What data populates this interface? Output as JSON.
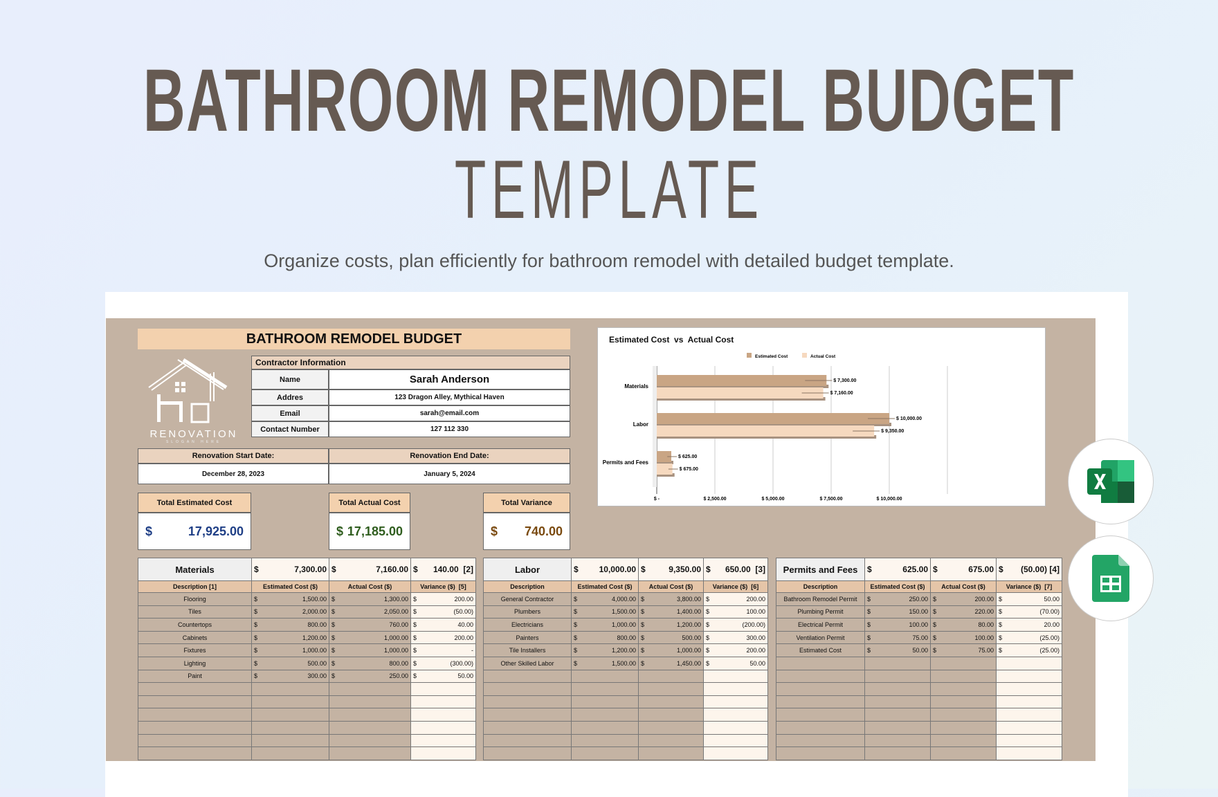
{
  "hero": {
    "title": "BATHROOM REMODEL BUDGET",
    "subtitle": "TEMPLATE",
    "description": "Organize costs, plan efficiently for bathroom remodel with detailed budget template."
  },
  "sheet": {
    "title": "BATHROOM REMODEL BUDGET",
    "logo": {
      "text": "RENOVATION",
      "slogan": "SLOGAN HERE"
    },
    "contractor": {
      "header": "Contractor Information",
      "rows": [
        {
          "label": "Name",
          "value": "Sarah Anderson"
        },
        {
          "label": "Addres",
          "value": "123 Dragon Alley, Mythical Haven"
        },
        {
          "label": "Email",
          "value": "sarah@email.com"
        },
        {
          "label": "Contact Number",
          "value": "127 112 330"
        }
      ]
    },
    "dates": {
      "start_label": "Renovation Start Date:",
      "start": "December 28, 2023",
      "end_label": "Renovation End Date:",
      "end": "January 5, 2024"
    },
    "totals": [
      {
        "label": "Total Estimated Cost",
        "currency": "$",
        "value": "17,925.00",
        "color": "#1f3f86"
      },
      {
        "label": "Total Actual Cost",
        "currency": "$",
        "value": "17,185.00",
        "color": "#2f5d1e"
      },
      {
        "label": "Total Variance",
        "currency": "$",
        "value": "740.00",
        "color": "#7a4a10"
      }
    ],
    "tables": [
      {
        "name": "Materials",
        "est_total": "7,300.00",
        "act_total": "7,160.00",
        "var_total": "140.00  [2]",
        "headers": [
          "Description [1]",
          "Estimated Cost ($)",
          "Actual Cost ($)",
          "Variance ($)  [5]"
        ],
        "rows": [
          [
            "Flooring",
            "1,500.00",
            "1,300.00",
            "200.00"
          ],
          [
            "Tiles",
            "2,000.00",
            "2,050.00",
            "(50.00)"
          ],
          [
            "Countertops",
            "800.00",
            "760.00",
            "40.00"
          ],
          [
            "Cabinets",
            "1,200.00",
            "1,000.00",
            "200.00"
          ],
          [
            "Fixtures",
            "1,000.00",
            "1,000.00",
            "-"
          ],
          [
            "Lighting",
            "500.00",
            "800.00",
            "(300.00)"
          ],
          [
            "Paint",
            "300.00",
            "250.00",
            "50.00"
          ]
        ]
      },
      {
        "name": "Labor",
        "est_total": "10,000.00",
        "act_total": "9,350.00",
        "var_total": "650.00  [3]",
        "headers": [
          "Description",
          "Estimated Cost ($)",
          "Actual Cost ($)",
          "Variance ($)  [6]"
        ],
        "rows": [
          [
            "General Contractor",
            "4,000.00",
            "3,800.00",
            "200.00"
          ],
          [
            "Plumbers",
            "1,500.00",
            "1,400.00",
            "100.00"
          ],
          [
            "Electricians",
            "1,000.00",
            "1,200.00",
            "(200.00)"
          ],
          [
            "Painters",
            "800.00",
            "500.00",
            "300.00"
          ],
          [
            "Tile Installers",
            "1,200.00",
            "1,000.00",
            "200.00"
          ],
          [
            "Other Skilled Labor",
            "1,500.00",
            "1,450.00",
            "50.00"
          ]
        ]
      },
      {
        "name": "Permits and Fees",
        "est_total": "625.00",
        "act_total": "675.00",
        "var_total": "(50.00) [4]",
        "headers": [
          "Description",
          "Estimated Cost ($)",
          "Actual Cost ($)",
          "Variance ($)  [7]"
        ],
        "rows": [
          [
            "Bathroom Remodel Permit",
            "250.00",
            "200.00",
            "50.00"
          ],
          [
            "Plumbing Permit",
            "150.00",
            "220.00",
            "(70.00)"
          ],
          [
            "Electrical Permit",
            "100.00",
            "80.00",
            "20.00"
          ],
          [
            "Ventilation Permit",
            "75.00",
            "100.00",
            "(25.00)"
          ],
          [
            "Estimated Cost",
            "50.00",
            "75.00",
            "(25.00)"
          ]
        ]
      }
    ],
    "currency": "$"
  },
  "chart_data": {
    "type": "bar",
    "orientation": "horizontal",
    "title": "Estimated Cost  vs  Actual Cost",
    "categories": [
      "Materials",
      "Labor",
      "Permits and Fees"
    ],
    "series": [
      {
        "name": "Estimated Cost",
        "values": [
          7300,
          10000,
          625
        ],
        "labels": [
          "$ 7,300.00",
          "$ 10,000.00",
          "$ 625.00"
        ],
        "color": "#c9a584"
      },
      {
        "name": "Actual Cost",
        "values": [
          7160,
          9350,
          675
        ],
        "labels": [
          "$ 7,160.00",
          "$ 9,350.00",
          "$ 675.00"
        ],
        "color": "#f6d9bf"
      }
    ],
    "xlim": [
      0,
      12500
    ],
    "xticks": [
      0,
      2500,
      5000,
      7500,
      10000
    ],
    "xtick_labels": [
      "$ -",
      "$ 2,500.00",
      "$ 5,000.00",
      "$ 7,500.00",
      "$ 10,000.00"
    ],
    "grid": true,
    "legend": "top"
  },
  "apps": [
    {
      "name": "Microsoft Excel",
      "icon": "excel-icon",
      "color": "#1d6f42"
    },
    {
      "name": "Google Sheets",
      "icon": "google-sheets-icon",
      "color": "#23a566"
    }
  ]
}
